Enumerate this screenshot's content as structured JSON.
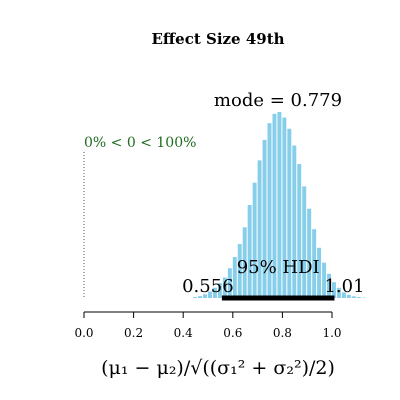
{
  "chart_data": {
    "type": "bar",
    "title": "Effect Size 49th",
    "xlabel": "(μ₁ − μ₂)/√((σ₁² + σ₂²)/2)",
    "ylabel": "",
    "xlim": [
      0.0,
      1.15
    ],
    "x_ticks": [
      0.0,
      0.2,
      0.4,
      0.6,
      0.8,
      1.0
    ],
    "x_tick_labels": [
      "0.0",
      "0.2",
      "0.4",
      "0.6",
      "0.8",
      "1.0"
    ],
    "bin_width": 0.02,
    "bins_start": [
      0.44,
      0.46,
      0.48,
      0.5,
      0.52,
      0.54,
      0.56,
      0.58,
      0.6,
      0.62,
      0.64,
      0.66,
      0.68,
      0.7,
      0.72,
      0.74,
      0.76,
      0.78,
      0.8,
      0.82,
      0.84,
      0.86,
      0.88,
      0.9,
      0.92,
      0.94,
      0.96,
      0.98,
      1.0,
      1.02,
      1.04,
      1.06,
      1.08,
      1.1,
      1.12
    ],
    "values": [
      0.005,
      0.01,
      0.02,
      0.035,
      0.055,
      0.08,
      0.11,
      0.16,
      0.22,
      0.29,
      0.38,
      0.5,
      0.62,
      0.74,
      0.85,
      0.94,
      0.99,
      1.0,
      0.97,
      0.91,
      0.82,
      0.72,
      0.6,
      0.48,
      0.37,
      0.27,
      0.19,
      0.13,
      0.085,
      0.055,
      0.03,
      0.017,
      0.009,
      0.005,
      0.002
    ],
    "bar_color": "#87CEEB",
    "mode_label": "mode = 0.779",
    "comparison_value": 0,
    "comparison_label": "0% < 0 < 100%",
    "comparison_color": "#1f6b1f",
    "hdi_label": "95% HDI",
    "hdi_low": 0.556,
    "hdi_high": 1.01,
    "hdi_low_label": "0.556",
    "hdi_high_label": "1.01"
  }
}
